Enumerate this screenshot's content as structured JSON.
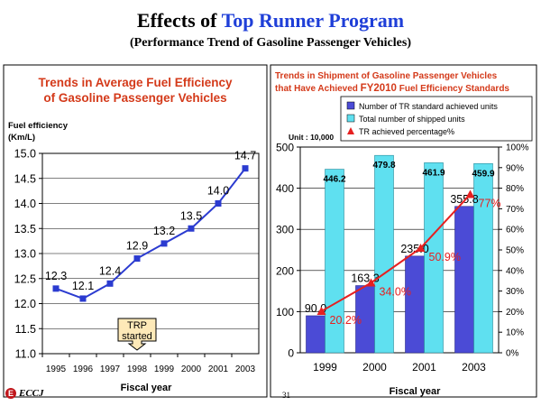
{
  "page": {
    "title_prefix": "Effects of ",
    "title_highlight": "Top Runner Program",
    "subtitle": "(Performance Trend of Gasoline Passenger Vehicles)",
    "page_number": "31",
    "logo_text": "ECCJ",
    "logo_mark": "E",
    "colors": {
      "title_highlight": "#1f3fd8",
      "left_title": "#d43a1a",
      "right_title": "#d43a1a",
      "line_blue": "#2b3bd0",
      "bar_blue": "#4b4bd6",
      "bar_cyan": "#5fe0f0",
      "pct_red": "#e62020"
    }
  },
  "chart_data": [
    {
      "type": "line",
      "title_line1": "Trends in Average Fuel Efficiency",
      "title_line2": "of Gasoline Passenger Vehicles",
      "ylabel_line1": "Fuel efficiency",
      "ylabel_line2": "(Km/L)",
      "xlabel": "Fiscal year",
      "categories": [
        "1995",
        "1996",
        "1997",
        "1998",
        "1999",
        "2000",
        "2001",
        "2003"
      ],
      "values": [
        12.3,
        12.1,
        12.4,
        12.9,
        13.2,
        13.5,
        14.0,
        14.7
      ],
      "data_labels": [
        "12.3",
        "12.1",
        "12.4",
        "12.9",
        "13.2",
        "13.5",
        "14.0",
        "14.7"
      ],
      "ylim": [
        11.0,
        15.0
      ],
      "yticks": [
        "11.0",
        "11.5",
        "12.0",
        "12.5",
        "13.0",
        "13.5",
        "14.0",
        "14.5",
        "15.0"
      ],
      "grid": "horizontal",
      "annotation": {
        "line1": "TRP",
        "line2": "started",
        "at_category": "1998"
      }
    },
    {
      "type": "bar",
      "title_line1": "Trends in Shipment of Gasoline Passenger Vehicles",
      "title_line2_prefix": "that Have Achieved ",
      "title_line2_emph": "FY2010",
      "title_line2_suffix": " Fuel Efficiency Standards",
      "unit_label": "Unit : 10,000",
      "xlabel": "Fiscal year",
      "categories": [
        "1999",
        "2000",
        "2001",
        "2003"
      ],
      "series": [
        {
          "name": "Number of TR standard achieved units",
          "values": [
            90.0,
            163.3,
            235.0,
            355.8
          ],
          "labels": [
            "90.0",
            "163.3",
            "235.0",
            "355.8"
          ]
        },
        {
          "name": "Total number of shipped units",
          "values": [
            446.2,
            479.8,
            461.9,
            459.9
          ],
          "labels": [
            "446.2",
            "479.8",
            "461.9",
            "459.9"
          ]
        }
      ],
      "line_series": {
        "name": "TR achieved percentage%",
        "values": [
          20.2,
          34.0,
          50.9,
          77.0
        ],
        "labels": [
          "20.2%",
          "34.0%",
          "50.9%",
          "77%"
        ]
      },
      "ylim": [
        0,
        500
      ],
      "yticks": [
        "0",
        "100",
        "200",
        "300",
        "400",
        "500"
      ],
      "y2lim": [
        0,
        100
      ],
      "y2ticks": [
        "0%",
        "10%",
        "20%",
        "30%",
        "40%",
        "50%",
        "60%",
        "70%",
        "80%",
        "90%",
        "100%"
      ],
      "legend": "top-right"
    }
  ]
}
